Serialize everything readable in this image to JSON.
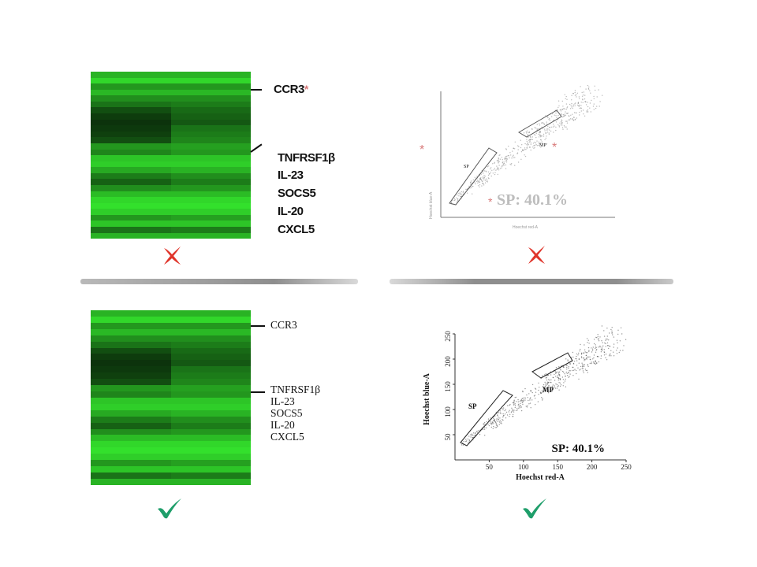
{
  "top_panel": {
    "genes": [
      "CCR3",
      "TNFRSF1β",
      "IL-23",
      "SOCS5",
      "IL-20",
      "CXCL5"
    ],
    "star": "*",
    "flow": {
      "sp_text": "SP: 40.1%",
      "gate_sp": "SP",
      "gate_mp": "MP"
    },
    "mark_color": "#e0352b"
  },
  "bottom_panel": {
    "genes": [
      "CCR3",
      "TNFRSF1β",
      "IL-23",
      "SOCS5",
      "IL-20",
      "CXCL5"
    ],
    "flow": {
      "sp_text": "SP: 40.1%",
      "gate_sp": "SP",
      "gate_mp": "MP",
      "xlabel": "Hoechst red-A",
      "ylabel": "Hoechst blue-A",
      "x_ticks": [
        "50",
        "100",
        "150",
        "200",
        "250"
      ],
      "y_ticks": [
        "50",
        "100",
        "150",
        "200",
        "250"
      ]
    },
    "mark_color": "#1e9e6a"
  },
  "colors": {
    "heat_bright": "#33e02c",
    "heat_dark": "#0a2a0a",
    "divider": "#9a9a9a"
  }
}
